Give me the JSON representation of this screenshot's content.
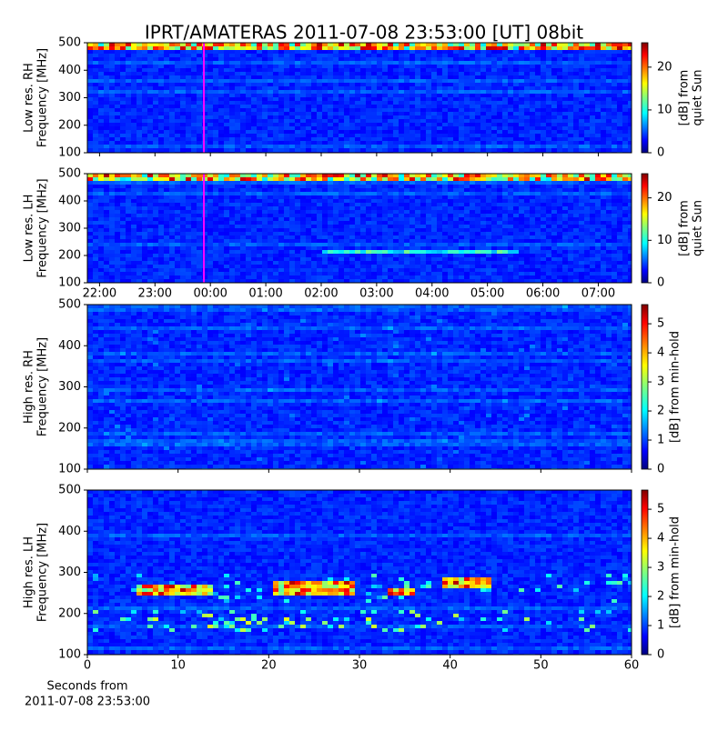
{
  "chart_data": [
    {
      "type": "spectrogram",
      "title": "IPRT/AMATERAS 2011-07-08 23:53:00 [UT]   08bit",
      "ylabel": [
        "Low res. RH",
        "Frequency [MHz]"
      ],
      "ylim": [
        100,
        500
      ],
      "yticks": [
        100,
        200,
        300,
        400,
        500
      ],
      "xlim": [
        21.78,
        31.6
      ],
      "marker_x": 23.883,
      "marker_color": "#ff00ff",
      "cmap": "jet",
      "colorbar": {
        "label": [
          "[dB] from",
          "quiet Sun"
        ],
        "lim": [
          0,
          25.7
        ],
        "ticks": [
          0,
          10,
          20
        ]
      }
    },
    {
      "type": "spectrogram",
      "ylabel": [
        "Low res. LH",
        "Frequency [MHz]"
      ],
      "ylim": [
        100,
        500
      ],
      "yticks": [
        100,
        200,
        300,
        400,
        500
      ],
      "xlim": [
        21.78,
        31.6
      ],
      "xticks": [
        {
          "value": 22,
          "label": "22:00"
        },
        {
          "value": 23,
          "label": "23:00"
        },
        {
          "value": 24,
          "label": "00:00"
        },
        {
          "value": 25,
          "label": "01:00"
        },
        {
          "value": 26,
          "label": "02:00"
        },
        {
          "value": 27,
          "label": "03:00"
        },
        {
          "value": 28,
          "label": "04:00"
        },
        {
          "value": 29,
          "label": "05:00"
        },
        {
          "value": 30,
          "label": "06:00"
        },
        {
          "value": 31,
          "label": "07:00"
        }
      ],
      "marker_x": 23.883,
      "marker_color": "#ff00ff",
      "cmap": "jet",
      "colorbar": {
        "label": [
          "[dB] from",
          "quiet Sun"
        ],
        "lim": [
          0,
          25.7
        ],
        "ticks": [
          0,
          10,
          20
        ]
      }
    },
    {
      "type": "spectrogram",
      "ylabel": [
        "High res. RH",
        "Frequency [MHz]"
      ],
      "ylim": [
        100,
        500
      ],
      "yticks": [
        100,
        200,
        300,
        400,
        500
      ],
      "xlim": [
        0,
        60
      ],
      "cmap": "jet",
      "colorbar": {
        "label": [
          "[dB] from min-hold"
        ],
        "lim": [
          0,
          5.66
        ],
        "ticks": [
          0,
          1,
          2,
          3,
          4,
          5
        ]
      }
    },
    {
      "type": "spectrogram",
      "ylabel": [
        "High res. LH",
        "Frequency [MHz]"
      ],
      "ylim": [
        100,
        500
      ],
      "yticks": [
        100,
        200,
        300,
        400,
        500
      ],
      "xlim": [
        0,
        60
      ],
      "xticks": [
        0,
        10,
        20,
        30,
        40,
        50,
        60
      ],
      "xlabel": [
        "Seconds from",
        "2011-07-08 23:53:00"
      ],
      "cmap": "jet",
      "colorbar": {
        "label": [
          "[dB] from min-hold"
        ],
        "lim": [
          0,
          5.66
        ],
        "ticks": [
          0,
          1,
          2,
          3,
          4,
          5
        ]
      }
    }
  ]
}
